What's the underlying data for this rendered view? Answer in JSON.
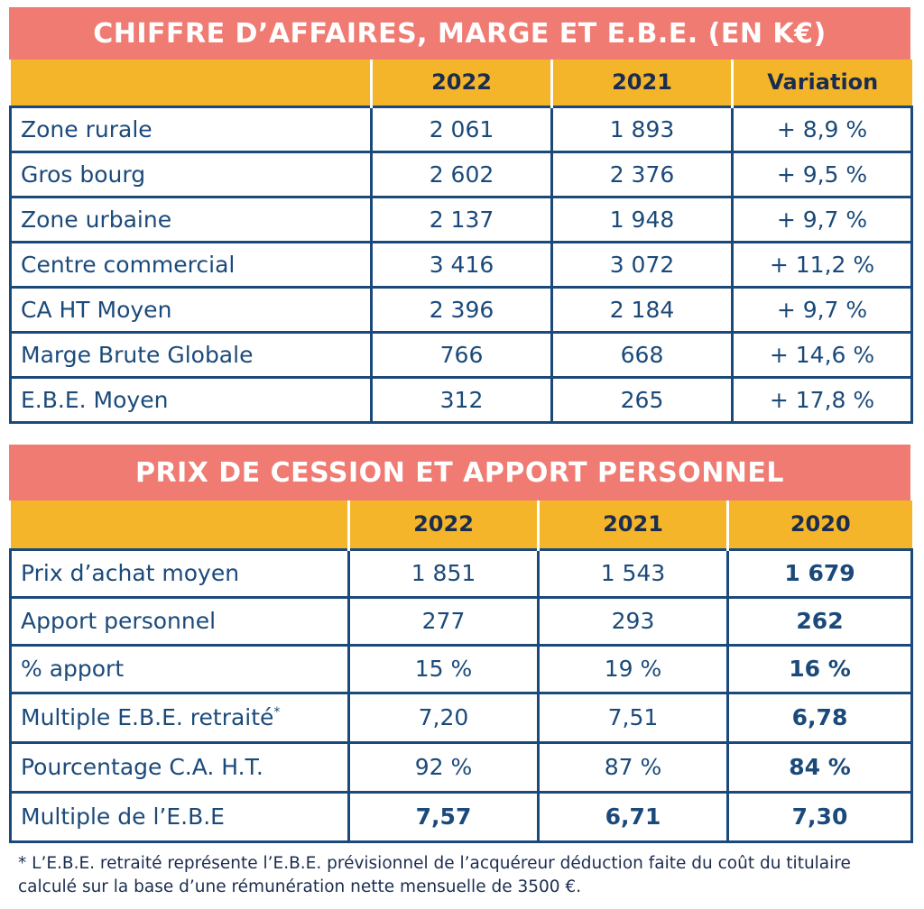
{
  "table1": {
    "title": "CHIFFRE D’AFFAIRES, MARGE ET E.B.E. (EN K€)",
    "headers": [
      "",
      "2022",
      "2021",
      "Variation"
    ],
    "rows": [
      [
        "Zone rurale",
        "2 061",
        "1 893",
        "+ 8,9 %"
      ],
      [
        "Gros bourg",
        "2 602",
        "2 376",
        "+ 9,5 %"
      ],
      [
        "Zone urbaine",
        "2 137",
        "1 948",
        "+ 9,7 %"
      ],
      [
        "Centre commercial",
        "3 416",
        "3 072",
        "+ 11,2 %"
      ],
      [
        "CA HT Moyen",
        "2 396",
        "2 184",
        "+ 9,7 %"
      ],
      [
        "Marge Brute Globale",
        "766",
        "668",
        "+ 14,6 %"
      ],
      [
        "E.B.E. Moyen",
        "312",
        "265",
        "+ 17,8 %"
      ]
    ]
  },
  "table2": {
    "title": "PRIX DE CESSION ET APPORT PERSONNEL",
    "headers": [
      "",
      "2022",
      "2021",
      "2020"
    ],
    "rows": [
      [
        "Prix d’achat moyen",
        "1 851",
        "1 543",
        "1 679"
      ],
      [
        "Apport personnel",
        "277",
        "293",
        "262"
      ],
      [
        "% apport",
        "15 %",
        "19 %",
        "16 %"
      ],
      [
        "Multiple E.B.E. retraité",
        "7,20",
        "7,51",
        "6,78"
      ],
      [
        "Pourcentage C.A. H.T.",
        "92 %",
        "87 %",
        "84 %"
      ],
      [
        "Multiple de l’E.B.E",
        "7,57",
        "6,71",
        "7,30"
      ]
    ],
    "footnote_marker": "*"
  },
  "footnote": "* L’E.B.E. retraité représente l’E.B.E. prévisionnel de l’acquéreur déduction faite du coût du titulaire calculé sur la base d’une rémunération nette mensuelle de 3500 €."
}
